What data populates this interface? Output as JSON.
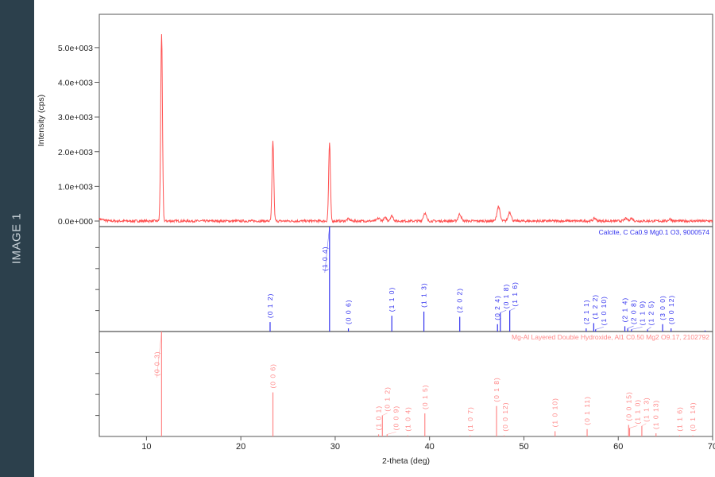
{
  "sidebar": {
    "label": "IMAGE 1",
    "background": "#2c404c"
  },
  "chart_data": {
    "type": "line",
    "xlabel": "2-theta (deg)",
    "xlim": [
      5,
      70
    ],
    "xticks": [
      10,
      20,
      30,
      40,
      50,
      60,
      70
    ],
    "grid": false,
    "panels": [
      {
        "kind": "pattern",
        "ylabel": "Intensity (cps)",
        "ylim": [
          -160,
          5960
        ],
        "yticks": [
          0,
          1000,
          2000,
          3000,
          4000,
          5000
        ],
        "ytick_labels": [
          "0.0e+000",
          "1.0e+003",
          "2.0e+003",
          "3.0e+003",
          "4.0e+003",
          "5.0e+003"
        ],
        "color": "#ff3333",
        "peaks": [
          {
            "x": 11.6,
            "y": 5400
          },
          {
            "x": 23.4,
            "y": 2300
          },
          {
            "x": 29.4,
            "y": 2230
          },
          {
            "x": 31.4,
            "y": 60
          },
          {
            "x": 34.6,
            "y": 80
          },
          {
            "x": 35.3,
            "y": 90
          },
          {
            "x": 36.0,
            "y": 150
          },
          {
            "x": 39.5,
            "y": 230
          },
          {
            "x": 43.2,
            "y": 200
          },
          {
            "x": 47.3,
            "y": 420
          },
          {
            "x": 48.5,
            "y": 260
          },
          {
            "x": 57.5,
            "y": 80
          },
          {
            "x": 60.8,
            "y": 70
          },
          {
            "x": 61.4,
            "y": 80
          },
          {
            "x": 65.5,
            "y": 60
          }
        ]
      },
      {
        "kind": "reference",
        "legend": "Calcite, C Ca0.9 Mg0.1 O3, 9000574",
        "color": "#3333ee",
        "sticks": [
          {
            "x": 23.1,
            "i": 9,
            "hkl": "(0 1 2)"
          },
          {
            "x": 29.4,
            "i": 100,
            "hkl": "(1 0 4)"
          },
          {
            "x": 31.4,
            "i": 3,
            "hkl": "(0 0 6)"
          },
          {
            "x": 36.0,
            "i": 15,
            "hkl": "(1 1 0)"
          },
          {
            "x": 39.4,
            "i": 19,
            "hkl": "(1 1 3)"
          },
          {
            "x": 43.2,
            "i": 14,
            "hkl": "(2 0 2)"
          },
          {
            "x": 47.2,
            "i": 7,
            "hkl": "(0 2 4)"
          },
          {
            "x": 47.5,
            "i": 18,
            "hkl": "(0 1 8)"
          },
          {
            "x": 48.5,
            "i": 20,
            "hkl": "(1 1 6)"
          },
          {
            "x": 56.6,
            "i": 3,
            "hkl": "(2 1 1)"
          },
          {
            "x": 57.4,
            "i": 8,
            "hkl": "(1 2 2)"
          },
          {
            "x": 57.6,
            "i": 2,
            "hkl": "(1 0 10)"
          },
          {
            "x": 60.7,
            "i": 5,
            "hkl": "(2 1 4)"
          },
          {
            "x": 61.0,
            "i": 3,
            "hkl": "(2 0 8)"
          },
          {
            "x": 61.4,
            "i": 2,
            "hkl": "(1 1 9)"
          },
          {
            "x": 63.1,
            "i": 2,
            "hkl": "(1 2 5)"
          },
          {
            "x": 64.7,
            "i": 7,
            "hkl": "(3 0 0)"
          },
          {
            "x": 65.6,
            "i": 3,
            "hkl": "(0 0 12)"
          },
          {
            "x": 69.2,
            "i": 1,
            "hkl": ""
          }
        ]
      },
      {
        "kind": "reference",
        "legend": "Mg-Al Layered Double Hydroxide, Al1 C0.50 Mg2 O9.17, 2102792",
        "color": "#ff8888",
        "sticks": [
          {
            "x": 11.6,
            "i": 100,
            "hkl": "(0 0 3)"
          },
          {
            "x": 23.4,
            "i": 42,
            "hkl": "(0 0 6)"
          },
          {
            "x": 34.6,
            "i": 2,
            "hkl": "(1 0 1)"
          },
          {
            "x": 35.0,
            "i": 20,
            "hkl": "(0 1 2)"
          },
          {
            "x": 35.5,
            "i": 2,
            "hkl": "(0 0 9)"
          },
          {
            "x": 37.7,
            "i": 1,
            "hkl": "(1 0 4)"
          },
          {
            "x": 39.5,
            "i": 22,
            "hkl": "(0 1 5)"
          },
          {
            "x": 44.3,
            "i": 1,
            "hkl": "(1 0 7)"
          },
          {
            "x": 47.1,
            "i": 29,
            "hkl": "(0 1 8)"
          },
          {
            "x": 47.9,
            "i": 1,
            "hkl": "(0 0 12)"
          },
          {
            "x": 53.3,
            "i": 5,
            "hkl": "(1 0 10)"
          },
          {
            "x": 56.7,
            "i": 7,
            "hkl": "(0 1 11)"
          },
          {
            "x": 61.1,
            "i": 11,
            "hkl": "(0 0 15)"
          },
          {
            "x": 61.2,
            "i": 8,
            "hkl": "(1 1 0)"
          },
          {
            "x": 62.5,
            "i": 10,
            "hkl": "(1 1 3)"
          },
          {
            "x": 64.0,
            "i": 3,
            "hkl": "(1 0 13)"
          },
          {
            "x": 66.5,
            "i": 1,
            "hkl": "(1 1 6)"
          },
          {
            "x": 67.9,
            "i": 1,
            "hkl": "(0 1 14)"
          }
        ]
      }
    ]
  }
}
